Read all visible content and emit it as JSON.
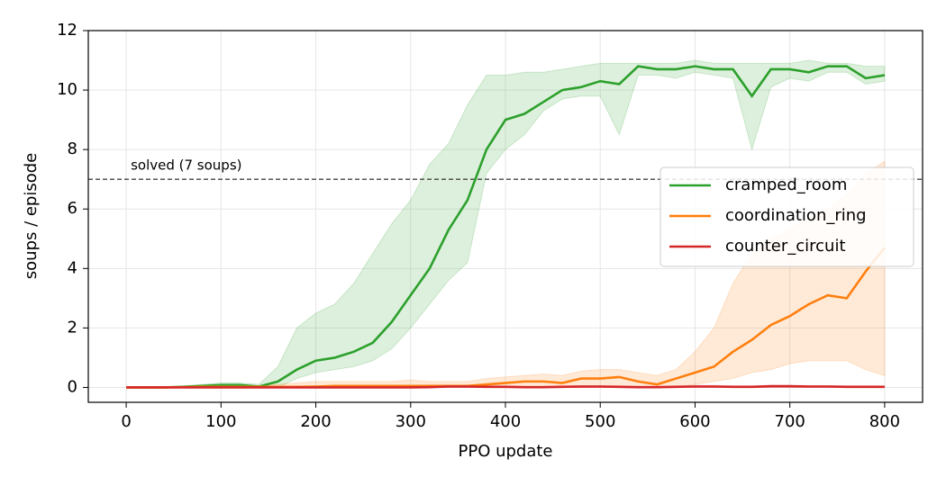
{
  "chart_data": {
    "type": "line",
    "xlabel": "PPO update",
    "ylabel": "soups / episode",
    "x": [
      0,
      20,
      40,
      60,
      80,
      100,
      120,
      140,
      160,
      180,
      200,
      220,
      240,
      260,
      280,
      300,
      320,
      340,
      360,
      380,
      400,
      420,
      440,
      460,
      480,
      500,
      520,
      540,
      560,
      580,
      600,
      620,
      640,
      660,
      680,
      700,
      720,
      740,
      760,
      780,
      800
    ],
    "xlim": [
      -40,
      840
    ],
    "ylim": [
      -0.5,
      12
    ],
    "xticks": [
      0,
      100,
      200,
      300,
      400,
      500,
      600,
      700,
      800
    ],
    "yticks": [
      0,
      2,
      4,
      6,
      8,
      10,
      12
    ],
    "grid": true,
    "legend": "right",
    "reference_line": {
      "value": 7,
      "label": "solved (7 soups)"
    },
    "series": [
      {
        "name": "cramped_room",
        "color": "#2ca02c",
        "values": [
          0,
          0,
          0,
          0.02,
          0.05,
          0.08,
          0.08,
          0.03,
          0.2,
          0.6,
          0.9,
          1.0,
          1.2,
          1.5,
          2.2,
          3.1,
          4.0,
          5.3,
          6.3,
          8.0,
          9.0,
          9.2,
          9.6,
          10.0,
          10.1,
          10.3,
          10.2,
          10.8,
          10.7,
          10.7,
          10.8,
          10.7,
          10.7,
          9.8,
          10.7,
          10.7,
          10.6,
          10.8,
          10.8,
          10.4,
          10.5
        ],
        "lower": [
          0,
          0,
          0,
          0,
          0,
          0,
          0,
          0,
          0,
          0.3,
          0.5,
          0.6,
          0.7,
          0.9,
          1.3,
          2.0,
          2.8,
          3.6,
          4.2,
          7.2,
          8.0,
          8.5,
          9.3,
          9.7,
          9.8,
          9.8,
          8.5,
          10.5,
          10.5,
          10.4,
          10.6,
          10.5,
          10.4,
          8.0,
          10.1,
          10.4,
          10.3,
          10.6,
          10.6,
          10.2,
          10.3
        ],
        "upper": [
          0,
          0,
          0,
          0.05,
          0.1,
          0.15,
          0.15,
          0.1,
          0.7,
          2.0,
          2.5,
          2.8,
          3.5,
          4.5,
          5.5,
          6.3,
          7.5,
          8.2,
          9.5,
          10.5,
          10.5,
          10.6,
          10.6,
          10.7,
          10.8,
          10.9,
          10.9,
          10.9,
          10.9,
          10.9,
          11.0,
          10.9,
          10.9,
          10.9,
          10.9,
          10.9,
          11.0,
          10.9,
          10.9,
          10.8,
          10.8
        ]
      },
      {
        "name": "coordination_ring",
        "color": "#ff7f0e",
        "values": [
          0,
          0,
          0,
          0.01,
          0.02,
          0.02,
          0.02,
          0.02,
          0.02,
          0.02,
          0.03,
          0.05,
          0.05,
          0.05,
          0.05,
          0.05,
          0.05,
          0.05,
          0.05,
          0.1,
          0.15,
          0.2,
          0.2,
          0.15,
          0.3,
          0.3,
          0.35,
          0.2,
          0.1,
          0.3,
          0.5,
          0.7,
          1.2,
          1.6,
          2.1,
          2.4,
          2.8,
          3.1,
          3.0,
          3.9,
          4.7
        ],
        "lower": [
          0,
          0,
          0,
          0,
          0,
          0,
          0,
          0,
          0,
          0,
          0,
          0,
          0,
          0,
          0,
          0,
          0,
          0,
          0,
          0,
          0,
          0,
          0,
          0,
          0,
          0,
          0,
          0,
          0,
          0,
          0.1,
          0.2,
          0.3,
          0.5,
          0.6,
          0.8,
          0.9,
          0.9,
          0.9,
          0.6,
          0.4
        ],
        "upper": [
          0,
          0,
          0.02,
          0.05,
          0.05,
          0.05,
          0.05,
          0.05,
          0.1,
          0.15,
          0.2,
          0.2,
          0.2,
          0.2,
          0.2,
          0.25,
          0.2,
          0.2,
          0.2,
          0.3,
          0.35,
          0.4,
          0.45,
          0.4,
          0.55,
          0.6,
          0.6,
          0.5,
          0.4,
          0.6,
          1.2,
          2.0,
          3.5,
          4.5,
          5.0,
          5.3,
          5.7,
          6.0,
          6.5,
          7.2,
          7.6
        ]
      },
      {
        "name": "counter_circuit",
        "color": "#d62728",
        "values": [
          0,
          0,
          0,
          0,
          0,
          0,
          0,
          0,
          0,
          0,
          0,
          0,
          0,
          0,
          0,
          0,
          0.01,
          0.03,
          0.03,
          0.02,
          0.02,
          0.01,
          0.01,
          0.02,
          0.03,
          0.03,
          0.02,
          0.01,
          0.01,
          0.02,
          0.03,
          0.03,
          0.02,
          0.02,
          0.04,
          0.04,
          0.03,
          0.03,
          0.02,
          0.02,
          0.02
        ],
        "lower": [
          0,
          0,
          0,
          0,
          0,
          0,
          0,
          0,
          0,
          0,
          0,
          0,
          0,
          0,
          0,
          0,
          0,
          0,
          0,
          0,
          0,
          0,
          0,
          0,
          0,
          0,
          0,
          0,
          0,
          0,
          0,
          0,
          0,
          0,
          0,
          0,
          0,
          0,
          0,
          0,
          0
        ],
        "upper": [
          0,
          0,
          0,
          0,
          0,
          0,
          0,
          0,
          0,
          0,
          0,
          0,
          0,
          0,
          0,
          0,
          0.03,
          0.06,
          0.06,
          0.05,
          0.05,
          0.03,
          0.03,
          0.05,
          0.06,
          0.06,
          0.05,
          0.03,
          0.03,
          0.05,
          0.07,
          0.07,
          0.05,
          0.05,
          0.08,
          0.08,
          0.06,
          0.06,
          0.05,
          0.05,
          0.05
        ]
      }
    ]
  }
}
